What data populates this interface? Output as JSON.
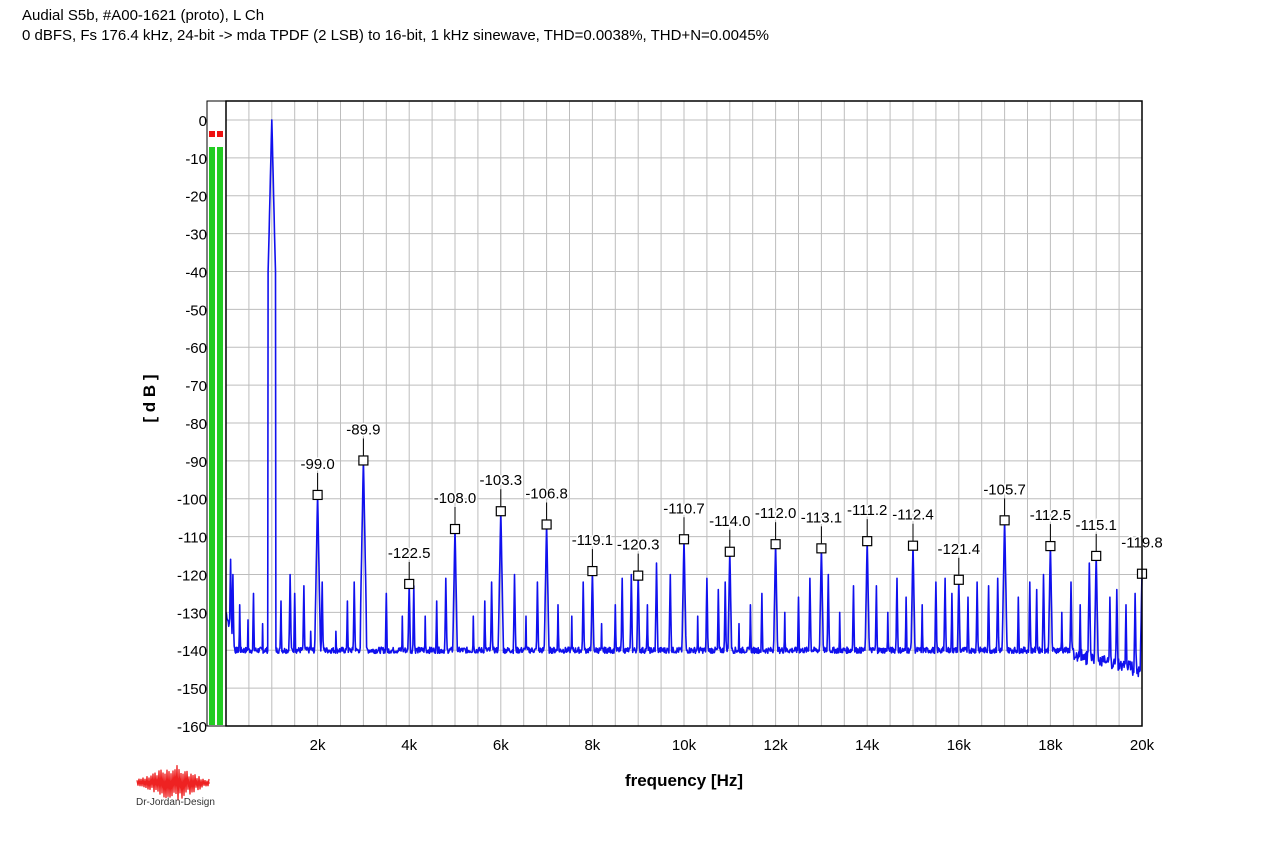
{
  "title_line1": "Audial S5b, #A00-1621 (proto), L Ch",
  "title_line2": "0 dBFS, Fs 176.4 kHz, 24-bit -> mda TPDF (2 LSB) to 16-bit, 1 kHz sinewave, THD=0.0038%, THD+N=0.0045%",
  "logo_text": "Dr-Jordan-Design",
  "colors": {
    "trace": "#1010ee",
    "grid": "#bdbdbd",
    "meter_green": "#22cc22",
    "meter_red": "#ee1111",
    "logo_red": "#ee2222"
  },
  "chart_data": {
    "type": "line",
    "xlabel": "frequency [Hz]",
    "ylabel": "[ d B ]",
    "xlim": [
      0,
      20000
    ],
    "ylim": [
      -160,
      5
    ],
    "x_tick_labels": [
      "2k",
      "4k",
      "6k",
      "8k",
      "10k",
      "12k",
      "14k",
      "16k",
      "18k",
      "20k"
    ],
    "x_ticks": [
      2000,
      4000,
      6000,
      8000,
      10000,
      12000,
      14000,
      16000,
      18000,
      20000
    ],
    "y_ticks": [
      0,
      -10,
      -20,
      -30,
      -40,
      -50,
      -60,
      -70,
      -80,
      -90,
      -100,
      -110,
      -120,
      -130,
      -140,
      -150,
      -160
    ],
    "grid": true,
    "noise_floor_db": -140,
    "fundamental": {
      "x": 1000,
      "y": 0
    },
    "harmonics": [
      {
        "x": 2000,
        "y": -99.0,
        "label": "-99.0"
      },
      {
        "x": 3000,
        "y": -89.9,
        "label": "-89.9"
      },
      {
        "x": 4000,
        "y": -122.5,
        "label": "-122.5"
      },
      {
        "x": 5000,
        "y": -108.0,
        "label": "-108.0"
      },
      {
        "x": 6000,
        "y": -103.3,
        "label": "-103.3"
      },
      {
        "x": 7000,
        "y": -106.8,
        "label": "-106.8"
      },
      {
        "x": 8000,
        "y": -119.1,
        "label": "-119.1"
      },
      {
        "x": 9000,
        "y": -120.3,
        "label": "-120.3"
      },
      {
        "x": 10000,
        "y": -110.7,
        "label": "-110.7"
      },
      {
        "x": 11000,
        "y": -114.0,
        "label": "-114.0"
      },
      {
        "x": 12000,
        "y": -112.0,
        "label": "-112.0"
      },
      {
        "x": 13000,
        "y": -113.1,
        "label": "-113.1"
      },
      {
        "x": 14000,
        "y": -111.2,
        "label": "-111.2"
      },
      {
        "x": 15000,
        "y": -112.4,
        "label": "-112.4"
      },
      {
        "x": 16000,
        "y": -121.4,
        "label": "-121.4"
      },
      {
        "x": 17000,
        "y": -105.7,
        "label": "-105.7"
      },
      {
        "x": 18000,
        "y": -112.5,
        "label": "-112.5"
      },
      {
        "x": 19000,
        "y": -115.1,
        "label": "-115.1"
      },
      {
        "x": 20000,
        "y": -119.8,
        "label": "-119.8"
      }
    ],
    "spurs": [
      {
        "x": 100,
        "y": -116
      },
      {
        "x": 150,
        "y": -120
      },
      {
        "x": 300,
        "y": -128
      },
      {
        "x": 480,
        "y": -132
      },
      {
        "x": 600,
        "y": -125
      },
      {
        "x": 800,
        "y": -133
      },
      {
        "x": 1200,
        "y": -127
      },
      {
        "x": 1400,
        "y": -120
      },
      {
        "x": 1500,
        "y": -125
      },
      {
        "x": 1700,
        "y": -123
      },
      {
        "x": 1850,
        "y": -135
      },
      {
        "x": 2100,
        "y": -122
      },
      {
        "x": 2400,
        "y": -135
      },
      {
        "x": 2650,
        "y": -127
      },
      {
        "x": 2800,
        "y": -122
      },
      {
        "x": 3500,
        "y": -125
      },
      {
        "x": 3850,
        "y": -131
      },
      {
        "x": 4100,
        "y": -123
      },
      {
        "x": 4350,
        "y": -131
      },
      {
        "x": 4600,
        "y": -127
      },
      {
        "x": 4800,
        "y": -121
      },
      {
        "x": 5400,
        "y": -131
      },
      {
        "x": 5650,
        "y": -127
      },
      {
        "x": 5800,
        "y": -122
      },
      {
        "x": 6300,
        "y": -120
      },
      {
        "x": 6550,
        "y": -131
      },
      {
        "x": 6800,
        "y": -122
      },
      {
        "x": 7250,
        "y": -128
      },
      {
        "x": 7550,
        "y": -131
      },
      {
        "x": 7800,
        "y": -122
      },
      {
        "x": 8200,
        "y": -133
      },
      {
        "x": 8500,
        "y": -128
      },
      {
        "x": 8650,
        "y": -121
      },
      {
        "x": 8850,
        "y": -120
      },
      {
        "x": 9200,
        "y": -128
      },
      {
        "x": 9400,
        "y": -117
      },
      {
        "x": 9700,
        "y": -120
      },
      {
        "x": 10300,
        "y": -131
      },
      {
        "x": 10500,
        "y": -121
      },
      {
        "x": 10750,
        "y": -124
      },
      {
        "x": 10900,
        "y": -122
      },
      {
        "x": 11200,
        "y": -133
      },
      {
        "x": 11450,
        "y": -128
      },
      {
        "x": 11700,
        "y": -125
      },
      {
        "x": 12200,
        "y": -130
      },
      {
        "x": 12500,
        "y": -126
      },
      {
        "x": 12750,
        "y": -121
      },
      {
        "x": 13150,
        "y": -120
      },
      {
        "x": 13400,
        "y": -130
      },
      {
        "x": 13700,
        "y": -123
      },
      {
        "x": 14200,
        "y": -123
      },
      {
        "x": 14450,
        "y": -130
      },
      {
        "x": 14650,
        "y": -121
      },
      {
        "x": 14850,
        "y": -126
      },
      {
        "x": 15200,
        "y": -128
      },
      {
        "x": 15500,
        "y": -122
      },
      {
        "x": 15700,
        "y": -121
      },
      {
        "x": 15850,
        "y": -125
      },
      {
        "x": 16200,
        "y": -126
      },
      {
        "x": 16400,
        "y": -122
      },
      {
        "x": 16650,
        "y": -123
      },
      {
        "x": 16850,
        "y": -121
      },
      {
        "x": 17300,
        "y": -126
      },
      {
        "x": 17550,
        "y": -122
      },
      {
        "x": 17700,
        "y": -124
      },
      {
        "x": 17850,
        "y": -120
      },
      {
        "x": 18250,
        "y": -130
      },
      {
        "x": 18450,
        "y": -122
      },
      {
        "x": 18650,
        "y": -128
      },
      {
        "x": 18850,
        "y": -117
      },
      {
        "x": 19300,
        "y": -126
      },
      {
        "x": 19450,
        "y": -124
      },
      {
        "x": 19650,
        "y": -128
      },
      {
        "x": 19850,
        "y": -125
      }
    ]
  }
}
